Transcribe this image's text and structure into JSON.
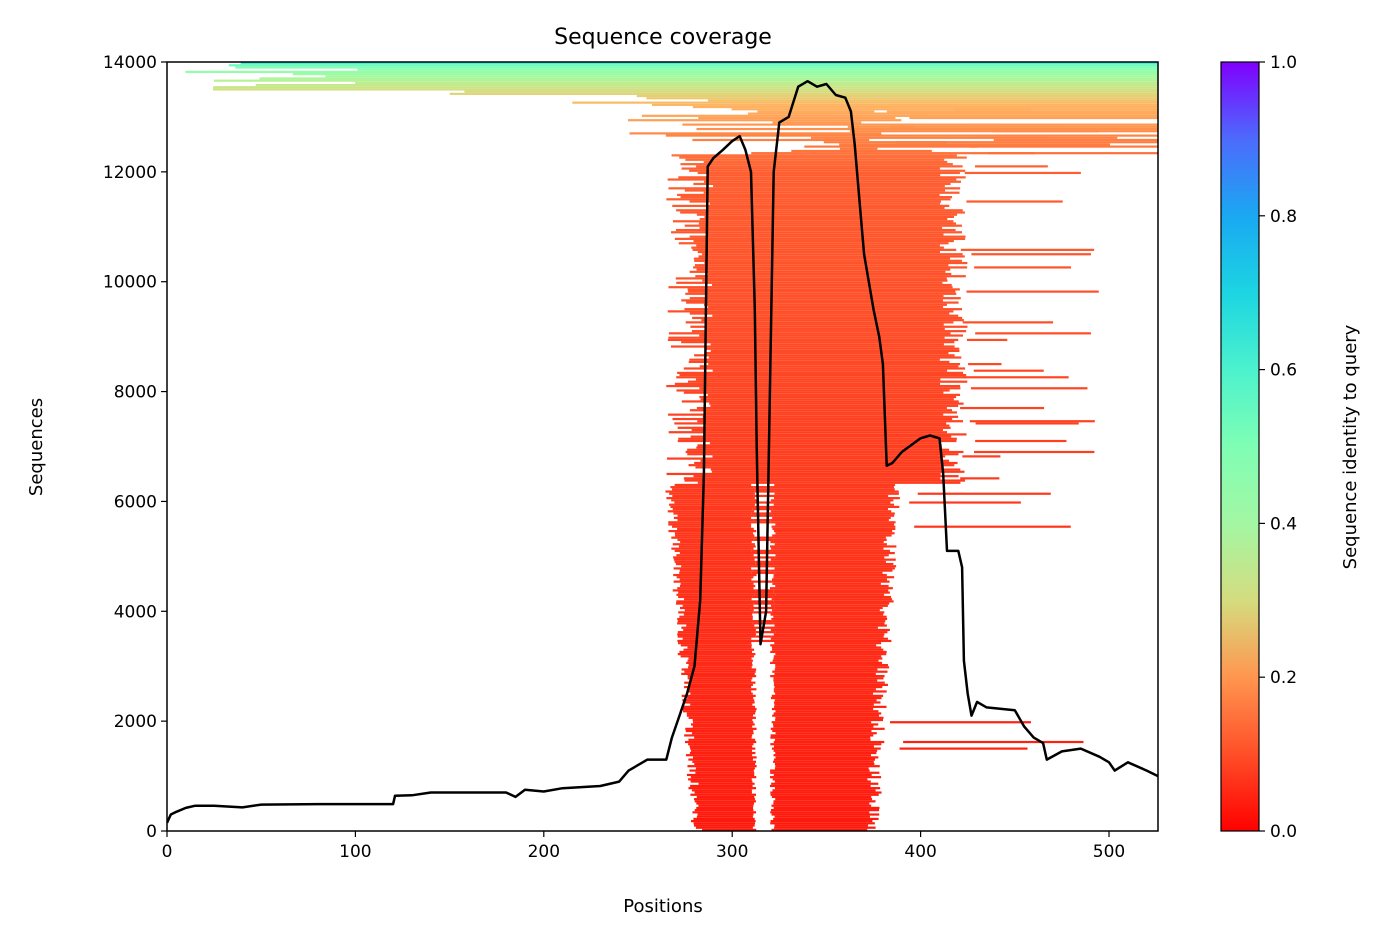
{
  "chart_data": {
    "type": "line",
    "title": "Sequence coverage",
    "xlabel": "Positions",
    "ylabel": "Sequences",
    "xlim": [
      0,
      526
    ],
    "ylim": [
      0,
      14000
    ],
    "xticks": [
      "0",
      "100",
      "200",
      "300",
      "400",
      "500"
    ],
    "yticks": [
      "0",
      "2000",
      "4000",
      "6000",
      "8000",
      "10000",
      "12000",
      "14000"
    ],
    "grid": false,
    "background": "heatmap of aligned sequences colored by sequence identity to query",
    "line_color": "#000000",
    "series": [
      {
        "x": [
          0,
          2,
          5,
          10,
          15,
          25,
          40,
          50,
          80,
          120,
          121,
          130,
          140,
          150,
          170,
          180,
          185,
          190,
          200,
          210,
          220,
          230,
          240,
          245,
          250,
          255,
          260,
          265,
          268,
          272,
          276,
          280,
          283,
          285,
          287,
          290,
          295,
          300,
          304,
          307,
          310,
          312,
          313,
          315,
          318,
          320,
          322,
          325,
          330,
          335,
          340,
          345,
          350,
          355,
          360,
          363,
          365,
          368,
          370,
          375,
          378,
          380,
          382,
          385,
          390,
          400,
          405,
          410,
          412,
          414,
          420,
          422,
          423,
          425,
          427,
          430,
          435,
          450,
          455,
          460,
          465,
          467,
          475,
          485,
          495,
          500,
          503,
          510,
          520,
          526
        ],
        "y": [
          150,
          300,
          350,
          420,
          460,
          460,
          430,
          480,
          490,
          490,
          640,
          650,
          700,
          700,
          700,
          700,
          620,
          750,
          720,
          780,
          800,
          820,
          900,
          1100,
          1200,
          1300,
          1300,
          1300,
          1700,
          2100,
          2500,
          3000,
          4200,
          6500,
          12100,
          12250,
          12400,
          12560,
          12650,
          12400,
          12000,
          9500,
          7000,
          3400,
          4000,
          8000,
          12000,
          12900,
          13000,
          13550,
          13650,
          13550,
          13600,
          13400,
          13350,
          13100,
          12500,
          11300,
          10500,
          9500,
          9000,
          8500,
          6650,
          6700,
          6900,
          7150,
          7200,
          7150,
          6500,
          5100,
          5100,
          4800,
          3100,
          2500,
          2100,
          2350,
          2250,
          2200,
          1900,
          1700,
          1600,
          1300,
          1450,
          1500,
          1350,
          1250,
          1100,
          1250,
          1100,
          1000
        ]
      }
    ],
    "colorbar": {
      "label": "Sequence identity to query",
      "colormap": "rainbow (0.0 red → 1.0 violet)",
      "range": [
        0.0,
        1.0
      ],
      "ticks": [
        "0.0",
        "0.2",
        "0.4",
        "0.6",
        "0.8",
        "1.0"
      ]
    }
  }
}
